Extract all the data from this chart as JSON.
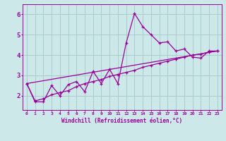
{
  "xlabel": "Windchill (Refroidissement éolien,°C)",
  "bg_color": "#cce8e8",
  "line_color": "#990099",
  "grid_color": "#aacccc",
  "xlim": [
    -0.5,
    23.5
  ],
  "ylim": [
    1.3,
    6.5
  ],
  "yticks": [
    2,
    3,
    4,
    5,
    6
  ],
  "xtick_labels": [
    "0",
    "1",
    "2",
    "3",
    "4",
    "5",
    "6",
    "7",
    "8",
    "9",
    "10",
    "11",
    "12",
    "13",
    "14",
    "15",
    "16",
    "17",
    "18",
    "19",
    "20",
    "21",
    "22",
    "23"
  ],
  "line1_x": [
    0,
    1,
    2,
    3,
    4,
    5,
    6,
    7,
    8,
    9,
    10,
    11,
    12,
    13,
    14,
    15,
    16,
    17,
    18,
    19,
    20,
    21,
    22,
    23
  ],
  "line1_y": [
    2.6,
    1.7,
    1.7,
    2.5,
    2.0,
    2.55,
    2.7,
    2.2,
    3.2,
    2.6,
    3.3,
    2.6,
    4.6,
    6.05,
    5.4,
    5.0,
    4.6,
    4.65,
    4.2,
    4.3,
    3.9,
    3.85,
    4.2,
    4.2
  ],
  "line2_x": [
    0,
    1,
    2,
    3,
    4,
    5,
    6,
    7,
    8,
    9,
    10,
    11,
    12,
    13,
    14,
    15,
    16,
    17,
    18,
    19,
    20,
    21,
    22,
    23
  ],
  "line2_y": [
    2.6,
    1.75,
    1.85,
    2.05,
    2.15,
    2.25,
    2.45,
    2.6,
    2.7,
    2.8,
    2.95,
    3.05,
    3.15,
    3.25,
    3.4,
    3.5,
    3.6,
    3.7,
    3.8,
    3.9,
    4.0,
    4.05,
    4.15,
    4.2
  ],
  "line3_x": [
    0,
    23
  ],
  "line3_y": [
    2.6,
    4.2
  ]
}
